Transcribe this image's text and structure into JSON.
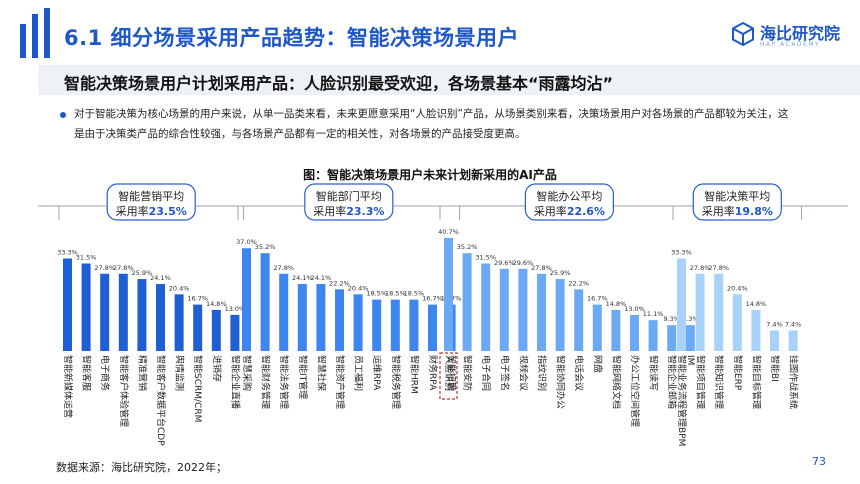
{
  "header": {
    "title": "6.1 细分场景采用产品趋势：智能决策场景用户",
    "logo_text": "海比研究院",
    "logo_sub": "HAP ACADEMY"
  },
  "subtitle": "智能决策场景用户计划采用产品：人脸识别最受欢迎，各场景基本“雨露均沾”",
  "bullet": "对于智能决策为核心场景的用户来说，从单一品类来看，未来更愿意采用“人脸识别”产品，从场景类别来看，决策场景用户对各场景的产品都较为关注，这是由于决策类产品的综合性较强，与各场景产品都有一定的相关性，对各场景的产品接受度更高。",
  "chart_data": {
    "type": "bar",
    "title": "图：智能决策场景用户未来计划新采用的AI产品",
    "groups": [
      {
        "name_line1": "智能营销平均",
        "name_prefix": "采用率",
        "avg": "23.5%",
        "color": "#1e5fd6",
        "categories": [
          "智能新媒体运营",
          "智能客服",
          "电子商务",
          "智能客户体验管理",
          "精准营销",
          "智能客户数据平台CDP",
          "舆情监测",
          "智能SCRM/CRM",
          "进销存",
          "智能企业直播"
        ],
        "values": [
          33.3,
          31.5,
          27.8,
          27.8,
          25.9,
          24.1,
          20.4,
          16.7,
          14.8,
          13.0
        ]
      },
      {
        "name_line1": "智能部门平均",
        "name_prefix": "采用率",
        "avg": "23.3%",
        "color": "#3e86ef",
        "categories": [
          "智慧采购",
          "智能财务管理",
          "智能法务管理",
          "智能IT管理",
          "智慧社保",
          "智能资产管理",
          "员工福利",
          "运维RPA",
          "智能税务管理",
          "智能HRM",
          "财务RPA",
          "智能招聘"
        ],
        "values": [
          37.0,
          35.2,
          27.8,
          24.1,
          24.1,
          22.2,
          20.4,
          18.5,
          18.5,
          18.5,
          16.7,
          16.7
        ]
      },
      {
        "name_line1": "智能办公平均",
        "name_prefix": "采用率",
        "avg": "22.6%",
        "color": "#6aaaf5",
        "categories": [
          "人脸识别",
          "智能安防",
          "电子合同",
          "电子签名",
          "视频会议",
          "指纹识别",
          "智能协同办公",
          "电话会议",
          "网盘",
          "智能网络文档",
          "办公工位空间管理",
          "智能读写",
          "智能企业邮箱",
          "IM"
        ],
        "values": [
          40.7,
          35.2,
          31.5,
          29.6,
          29.6,
          27.8,
          25.9,
          22.2,
          16.7,
          14.8,
          13.0,
          11.1,
          9.3,
          9.3
        ]
      },
      {
        "name_line1": "智能决策平均",
        "name_prefix": "采用率",
        "avg": "19.8%",
        "color": "#a9d2fb",
        "categories": [
          "智能业务流程管理BPM",
          "智能项目管理",
          "智能知识管理",
          "智能ERP",
          "智能目标管理",
          "智能BI",
          "挂图作战系统"
        ],
        "values": [
          33.3,
          27.8,
          27.8,
          20.4,
          14.8,
          7.4,
          7.4
        ]
      }
    ],
    "value_suffix": "%",
    "highlighted_category": "人脸识别",
    "ylim": [
      0,
      45
    ]
  },
  "source": "数据来源：海比研究院，2022年；",
  "page_number": "73"
}
